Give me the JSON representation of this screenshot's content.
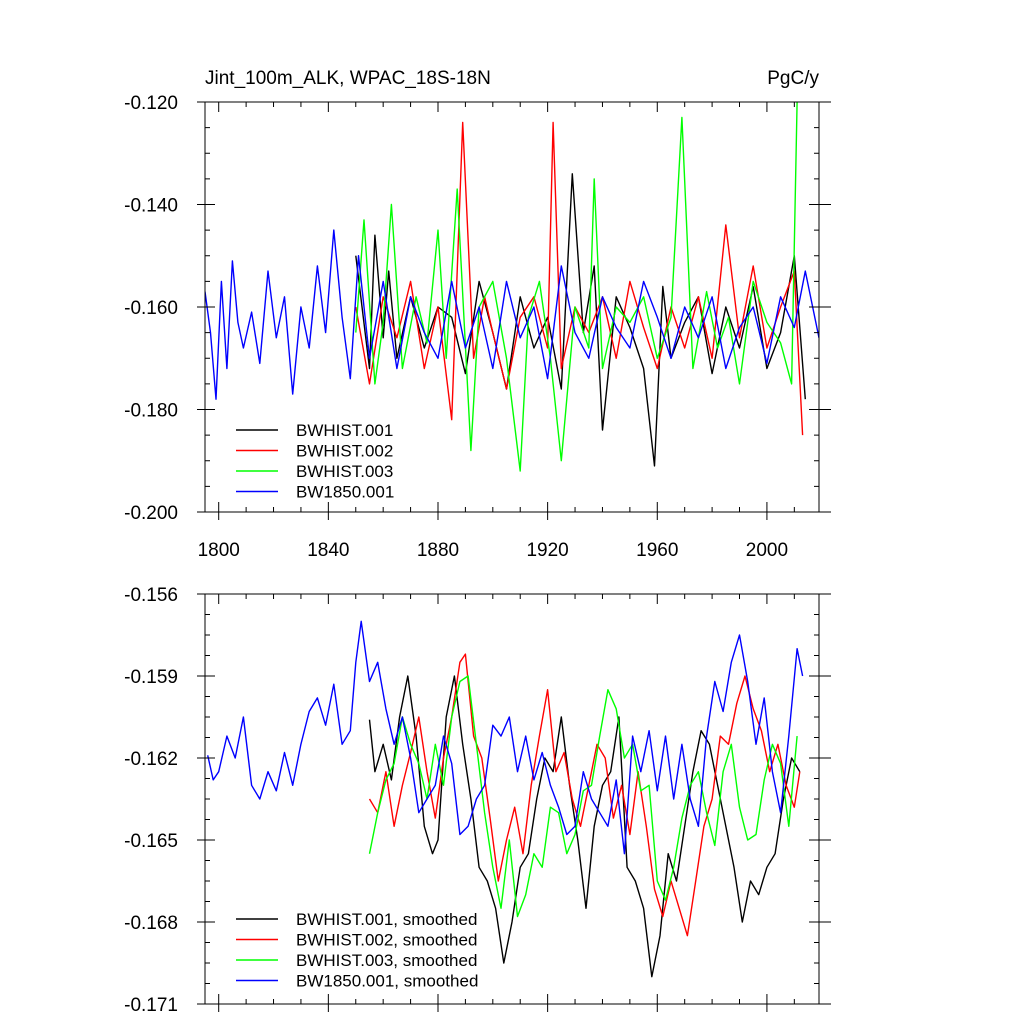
{
  "chart_data": [
    {
      "type": "line",
      "title": "Jint_100m_ALK, WPAC_18S-18N",
      "units": "PgC/y",
      "xlabel": "",
      "ylabel": "",
      "xlim": [
        1795,
        2019
      ],
      "ylim": [
        -0.2,
        -0.12
      ],
      "x_ticks": [
        1800,
        1840,
        1880,
        1920,
        1960,
        2000
      ],
      "x_tick_labels": [
        "1800",
        "1840",
        "1880",
        "1920",
        "1960",
        "2000"
      ],
      "y_ticks": [
        -0.2,
        -0.18,
        -0.16,
        -0.14,
        -0.12
      ],
      "y_tick_labels": [
        "-0.200",
        "-0.180",
        "-0.160",
        "-0.140",
        "-0.120"
      ],
      "legend_position": "bottom-left",
      "series": [
        {
          "name": "BWHIST.001",
          "color": "#000000",
          "x": [
            1850,
            1855,
            1857,
            1860,
            1862,
            1865,
            1870,
            1875,
            1880,
            1885,
            1890,
            1895,
            1900,
            1905,
            1910,
            1915,
            1920,
            1925,
            1929,
            1933,
            1937,
            1940,
            1945,
            1950,
            1955,
            1959,
            1962,
            1965,
            1970,
            1975,
            1980,
            1985,
            1990,
            1995,
            2000,
            2005,
            2010,
            2014
          ],
          "values": [
            -0.15,
            -0.172,
            -0.146,
            -0.166,
            -0.153,
            -0.17,
            -0.158,
            -0.168,
            -0.16,
            -0.162,
            -0.173,
            -0.155,
            -0.165,
            -0.176,
            -0.158,
            -0.168,
            -0.162,
            -0.176,
            -0.134,
            -0.165,
            -0.152,
            -0.184,
            -0.158,
            -0.164,
            -0.172,
            -0.191,
            -0.156,
            -0.17,
            -0.163,
            -0.158,
            -0.173,
            -0.16,
            -0.168,
            -0.156,
            -0.172,
            -0.165,
            -0.15,
            -0.178
          ]
        },
        {
          "name": "BWHIST.002",
          "color": "#ff0000",
          "x": [
            1850,
            1855,
            1860,
            1865,
            1870,
            1875,
            1880,
            1885,
            1889,
            1893,
            1897,
            1900,
            1905,
            1910,
            1915,
            1920,
            1922,
            1925,
            1930,
            1935,
            1940,
            1945,
            1950,
            1955,
            1960,
            1965,
            1970,
            1975,
            1980,
            1985,
            1990,
            1995,
            2000,
            2005,
            2010,
            2013
          ],
          "values": [
            -0.16,
            -0.175,
            -0.158,
            -0.166,
            -0.155,
            -0.172,
            -0.16,
            -0.182,
            -0.124,
            -0.17,
            -0.158,
            -0.165,
            -0.176,
            -0.162,
            -0.158,
            -0.168,
            -0.124,
            -0.172,
            -0.16,
            -0.165,
            -0.158,
            -0.17,
            -0.155,
            -0.164,
            -0.172,
            -0.16,
            -0.168,
            -0.158,
            -0.17,
            -0.144,
            -0.166,
            -0.152,
            -0.168,
            -0.16,
            -0.153,
            -0.185
          ]
        },
        {
          "name": "BWHIST.003",
          "color": "#00ff00",
          "x": [
            1850,
            1853,
            1857,
            1860,
            1863,
            1867,
            1872,
            1876,
            1880,
            1883,
            1887,
            1892,
            1895,
            1900,
            1905,
            1910,
            1913,
            1917,
            1921,
            1925,
            1930,
            1935,
            1937,
            1940,
            1945,
            1950,
            1955,
            1960,
            1965,
            1969,
            1973,
            1978,
            1982,
            1986,
            1990,
            1995,
            2000,
            2005,
            2009,
            2011
          ],
          "values": [
            -0.165,
            -0.143,
            -0.175,
            -0.163,
            -0.14,
            -0.172,
            -0.158,
            -0.167,
            -0.145,
            -0.17,
            -0.137,
            -0.188,
            -0.16,
            -0.155,
            -0.17,
            -0.192,
            -0.162,
            -0.155,
            -0.17,
            -0.19,
            -0.16,
            -0.168,
            -0.135,
            -0.172,
            -0.16,
            -0.163,
            -0.158,
            -0.17,
            -0.162,
            -0.123,
            -0.172,
            -0.157,
            -0.168,
            -0.162,
            -0.175,
            -0.155,
            -0.163,
            -0.167,
            -0.175,
            -0.12
          ]
        },
        {
          "name": "BW1850.001",
          "color": "#0000ff",
          "x": [
            1795,
            1797,
            1799,
            1801,
            1803,
            1805,
            1807,
            1809,
            1812,
            1815,
            1818,
            1821,
            1824,
            1827,
            1830,
            1833,
            1836,
            1839,
            1842,
            1845,
            1848,
            1851,
            1855,
            1860,
            1865,
            1870,
            1875,
            1880,
            1885,
            1890,
            1895,
            1900,
            1905,
            1910,
            1915,
            1920,
            1925,
            1930,
            1935,
            1940,
            1945,
            1950,
            1955,
            1960,
            1965,
            1970,
            1975,
            1980,
            1985,
            1990,
            1995,
            2000,
            2005,
            2010,
            2014,
            2019
          ],
          "values": [
            -0.157,
            -0.165,
            -0.178,
            -0.155,
            -0.172,
            -0.151,
            -0.163,
            -0.168,
            -0.161,
            -0.171,
            -0.153,
            -0.166,
            -0.158,
            -0.177,
            -0.16,
            -0.168,
            -0.152,
            -0.165,
            -0.145,
            -0.162,
            -0.174,
            -0.15,
            -0.17,
            -0.155,
            -0.172,
            -0.158,
            -0.165,
            -0.17,
            -0.155,
            -0.168,
            -0.16,
            -0.172,
            -0.155,
            -0.166,
            -0.16,
            -0.174,
            -0.152,
            -0.165,
            -0.17,
            -0.158,
            -0.164,
            -0.168,
            -0.155,
            -0.162,
            -0.17,
            -0.16,
            -0.166,
            -0.158,
            -0.172,
            -0.164,
            -0.16,
            -0.171,
            -0.158,
            -0.164,
            -0.153,
            -0.166
          ]
        }
      ]
    },
    {
      "type": "line",
      "title": "",
      "xlabel": "",
      "ylabel": "",
      "xlim": [
        1795,
        2019
      ],
      "ylim": [
        -0.171,
        -0.156
      ],
      "x_ticks": [
        1800,
        1840,
        1880,
        1920,
        1960,
        2000
      ],
      "y_ticks": [
        -0.171,
        -0.168,
        -0.165,
        -0.162,
        -0.159,
        -0.156
      ],
      "y_tick_labels": [
        "-0.171",
        "-0.168",
        "-0.165",
        "-0.162",
        "-0.159",
        "-0.156"
      ],
      "legend_position": "bottom-left",
      "series": [
        {
          "name": "BWHIST.001, smoothed",
          "color": "#000000",
          "x": [
            1855,
            1857,
            1860,
            1863,
            1866,
            1869,
            1872,
            1875,
            1878,
            1880,
            1883,
            1886,
            1889,
            1892,
            1895,
            1898,
            1901,
            1904,
            1907,
            1910,
            1913,
            1916,
            1919,
            1922,
            1925,
            1928,
            1931,
            1934,
            1937,
            1940,
            1943,
            1946,
            1949,
            1952,
            1955,
            1958,
            1961,
            1964,
            1967,
            1970,
            1973,
            1976,
            1979,
            1982,
            1985,
            1988,
            1991,
            1994,
            1997,
            2000,
            2003,
            2006,
            2009,
            2012
          ],
          "values": [
            -0.1606,
            -0.1625,
            -0.1615,
            -0.1628,
            -0.1605,
            -0.159,
            -0.1612,
            -0.1645,
            -0.1655,
            -0.165,
            -0.1605,
            -0.159,
            -0.1615,
            -0.1635,
            -0.166,
            -0.1665,
            -0.1675,
            -0.1695,
            -0.168,
            -0.166,
            -0.1655,
            -0.1635,
            -0.162,
            -0.1625,
            -0.1605,
            -0.163,
            -0.165,
            -0.1675,
            -0.1645,
            -0.163,
            -0.1625,
            -0.1605,
            -0.166,
            -0.1665,
            -0.1675,
            -0.17,
            -0.1685,
            -0.1655,
            -0.1665,
            -0.1645,
            -0.1625,
            -0.161,
            -0.1615,
            -0.163,
            -0.1645,
            -0.166,
            -0.168,
            -0.1665,
            -0.167,
            -0.166,
            -0.1655,
            -0.1635,
            -0.162,
            -0.1625
          ]
        },
        {
          "name": "BWHIST.002, smoothed",
          "color": "#ff0000",
          "x": [
            1855,
            1858,
            1861,
            1864,
            1867,
            1870,
            1873,
            1876,
            1879,
            1882,
            1885,
            1888,
            1890,
            1893,
            1896,
            1899,
            1902,
            1905,
            1908,
            1911,
            1914,
            1917,
            1920,
            1923,
            1926,
            1929,
            1932,
            1935,
            1938,
            1941,
            1944,
            1947,
            1950,
            1953,
            1956,
            1959,
            1962,
            1965,
            1968,
            1971,
            1974,
            1977,
            1980,
            1983,
            1986,
            1989,
            1992,
            1995,
            1998,
            2001,
            2004,
            2007,
            2010,
            2012
          ],
          "values": [
            -0.1635,
            -0.164,
            -0.1625,
            -0.1645,
            -0.163,
            -0.1618,
            -0.1605,
            -0.1625,
            -0.1642,
            -0.162,
            -0.1605,
            -0.1585,
            -0.1582,
            -0.1612,
            -0.162,
            -0.1642,
            -0.1665,
            -0.165,
            -0.1638,
            -0.1655,
            -0.163,
            -0.1612,
            -0.1595,
            -0.1625,
            -0.1618,
            -0.1635,
            -0.1645,
            -0.163,
            -0.1615,
            -0.162,
            -0.1642,
            -0.163,
            -0.1648,
            -0.1625,
            -0.1645,
            -0.1668,
            -0.1678,
            -0.1665,
            -0.1675,
            -0.1685,
            -0.1665,
            -0.1645,
            -0.1635,
            -0.1612,
            -0.1615,
            -0.16,
            -0.159,
            -0.1602,
            -0.161,
            -0.1625,
            -0.1615,
            -0.163,
            -0.1638,
            -0.1625
          ]
        },
        {
          "name": "BWHIST.003, smoothed",
          "color": "#00ff00",
          "x": [
            1855,
            1858,
            1861,
            1864,
            1867,
            1870,
            1873,
            1876,
            1879,
            1882,
            1885,
            1888,
            1891,
            1894,
            1897,
            1900,
            1903,
            1906,
            1909,
            1912,
            1915,
            1918,
            1921,
            1924,
            1927,
            1930,
            1933,
            1936,
            1939,
            1942,
            1945,
            1948,
            1951,
            1954,
            1957,
            1960,
            1963,
            1966,
            1969,
            1972,
            1975,
            1978,
            1981,
            1984,
            1987,
            1990,
            1993,
            1996,
            1999,
            2002,
            2005,
            2008,
            2011
          ],
          "values": [
            -0.1655,
            -0.164,
            -0.1628,
            -0.1622,
            -0.1605,
            -0.1615,
            -0.1622,
            -0.1635,
            -0.1615,
            -0.163,
            -0.1605,
            -0.1592,
            -0.159,
            -0.1615,
            -0.164,
            -0.166,
            -0.1675,
            -0.165,
            -0.1678,
            -0.167,
            -0.1655,
            -0.166,
            -0.1638,
            -0.164,
            -0.1655,
            -0.1648,
            -0.1632,
            -0.163,
            -0.1612,
            -0.1595,
            -0.1602,
            -0.162,
            -0.1615,
            -0.1632,
            -0.163,
            -0.1665,
            -0.1672,
            -0.166,
            -0.1642,
            -0.163,
            -0.1625,
            -0.164,
            -0.1652,
            -0.1625,
            -0.1615,
            -0.1638,
            -0.165,
            -0.1648,
            -0.1628,
            -0.1615,
            -0.1622,
            -0.1645,
            -0.1612
          ]
        },
        {
          "name": "BW1850.001, smoothed",
          "color": "#0000ff",
          "x": [
            1796,
            1798,
            1800,
            1803,
            1806,
            1809,
            1812,
            1815,
            1818,
            1821,
            1824,
            1827,
            1830,
            1833,
            1836,
            1839,
            1842,
            1845,
            1848,
            1850,
            1852,
            1855,
            1858,
            1861,
            1864,
            1867,
            1870,
            1873,
            1876,
            1879,
            1882,
            1885,
            1888,
            1891,
            1894,
            1897,
            1900,
            1903,
            1906,
            1909,
            1912,
            1915,
            1918,
            1921,
            1924,
            1927,
            1930,
            1933,
            1936,
            1939,
            1942,
            1945,
            1948,
            1951,
            1954,
            1957,
            1960,
            1963,
            1966,
            1969,
            1972,
            1975,
            1978,
            1981,
            1984,
            1987,
            1990,
            1993,
            1996,
            1999,
            2002,
            2005,
            2008,
            2011,
            2013
          ],
          "values": [
            -0.1619,
            -0.1628,
            -0.1625,
            -0.1612,
            -0.162,
            -0.1605,
            -0.163,
            -0.1635,
            -0.1625,
            -0.1632,
            -0.1618,
            -0.163,
            -0.1615,
            -0.1603,
            -0.1598,
            -0.1608,
            -0.1593,
            -0.1615,
            -0.161,
            -0.1585,
            -0.157,
            -0.1592,
            -0.1585,
            -0.1602,
            -0.1615,
            -0.1605,
            -0.162,
            -0.164,
            -0.1635,
            -0.163,
            -0.1612,
            -0.1622,
            -0.1648,
            -0.1645,
            -0.1635,
            -0.163,
            -0.1608,
            -0.1612,
            -0.1605,
            -0.1625,
            -0.1612,
            -0.1628,
            -0.1618,
            -0.163,
            -0.1638,
            -0.1648,
            -0.1645,
            -0.1625,
            -0.1635,
            -0.164,
            -0.1645,
            -0.1628,
            -0.1655,
            -0.1612,
            -0.1625,
            -0.161,
            -0.1632,
            -0.1612,
            -0.1635,
            -0.1615,
            -0.1635,
            -0.1645,
            -0.1612,
            -0.1592,
            -0.1603,
            -0.1585,
            -0.1575,
            -0.1592,
            -0.1615,
            -0.1598,
            -0.1625,
            -0.164,
            -0.1612,
            -0.158,
            -0.159
          ]
        }
      ]
    }
  ]
}
